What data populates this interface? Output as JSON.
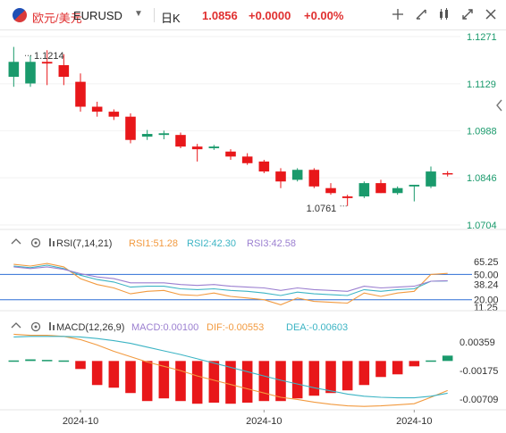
{
  "header": {
    "pair_name": "欧元/美元",
    "ticker": "EURUSD",
    "interval": "日K",
    "price": "1.0856",
    "change": "+0.0000",
    "change_pct": "+0.00%",
    "icons": [
      "crosshair-icon",
      "chart-settings-icon",
      "indicator-icon",
      "fullscreen-icon",
      "close-icon"
    ]
  },
  "colors": {
    "up": "#1a9a6c",
    "down": "#e8171a",
    "axis_text": "#1a9a6c"
  },
  "main": {
    "price_labels": [
      "1.1271",
      "1.1129",
      "1.0988",
      "1.0846",
      "1.0704"
    ],
    "high_annotation": "1.1214",
    "low_annotation": "1.0761"
  },
  "rsi": {
    "label": "RSI(7,14,21)",
    "rsi1": "RSI1:51.28",
    "rsi2": "RSI2:42.30",
    "rsi3": "RSI3:42.58",
    "axis_labels": [
      "65.25",
      "50.00",
      "38.24",
      "20.00",
      "11.25"
    ]
  },
  "macd": {
    "label": "MACD(12,26,9)",
    "macd_value": "MACD:0.00100",
    "dif": "DIF:-0.00553",
    "dea": "DEA:-0.00603",
    "axis_labels": [
      "0.00359",
      "-0.00175",
      "-0.00709"
    ]
  },
  "x_labels": [
    "2024-10",
    "2024-10",
    "2024-10"
  ],
  "chart_data": {
    "type": "candlestick",
    "ylim": [
      1.0704,
      1.1271
    ],
    "candles": [
      {
        "o": 1.115,
        "h": 1.124,
        "l": 1.112,
        "c": 1.1195
      },
      {
        "o": 1.113,
        "h": 1.1214,
        "l": 1.112,
        "c": 1.1195
      },
      {
        "o": 1.1195,
        "h": 1.123,
        "l": 1.1125,
        "c": 1.119
      },
      {
        "o": 1.1185,
        "h": 1.1218,
        "l": 1.1125,
        "c": 1.115
      },
      {
        "o": 1.1135,
        "h": 1.116,
        "l": 1.1045,
        "c": 1.106
      },
      {
        "o": 1.106,
        "h": 1.1075,
        "l": 1.103,
        "c": 1.1045
      },
      {
        "o": 1.1045,
        "h": 1.1052,
        "l": 1.102,
        "c": 1.103
      },
      {
        "o": 1.103,
        "h": 1.104,
        "l": 1.095,
        "c": 1.096
      },
      {
        "o": 1.097,
        "h": 1.099,
        "l": 1.096,
        "c": 1.0978
      },
      {
        "o": 1.0975,
        "h": 1.0988,
        "l": 1.0962,
        "c": 1.098
      },
      {
        "o": 1.0975,
        "h": 1.0982,
        "l": 1.0935,
        "c": 1.094
      },
      {
        "o": 1.094,
        "h": 1.0948,
        "l": 1.0895,
        "c": 1.0932
      },
      {
        "o": 1.0935,
        "h": 1.0945,
        "l": 1.093,
        "c": 1.094
      },
      {
        "o": 1.0925,
        "h": 1.0932,
        "l": 1.09,
        "c": 1.091
      },
      {
        "o": 1.091,
        "h": 1.092,
        "l": 1.0885,
        "c": 1.089
      },
      {
        "o": 1.0895,
        "h": 1.09,
        "l": 1.086,
        "c": 1.0865
      },
      {
        "o": 1.0865,
        "h": 1.0875,
        "l": 1.0815,
        "c": 1.0835
      },
      {
        "o": 1.084,
        "h": 1.0875,
        "l": 1.0835,
        "c": 1.087
      },
      {
        "o": 1.087,
        "h": 1.0875,
        "l": 1.0815,
        "c": 1.082
      },
      {
        "o": 1.0815,
        "h": 1.083,
        "l": 1.0795,
        "c": 1.08
      },
      {
        "o": 1.079,
        "h": 1.0795,
        "l": 1.0761,
        "c": 1.0785
      },
      {
        "o": 1.079,
        "h": 1.0835,
        "l": 1.0785,
        "c": 1.083
      },
      {
        "o": 1.083,
        "h": 1.084,
        "l": 1.08,
        "c": 1.08
      },
      {
        "o": 1.08,
        "h": 1.082,
        "l": 1.0795,
        "c": 1.0815
      },
      {
        "o": 1.082,
        "h": 1.0825,
        "l": 1.0775,
        "c": 1.0825
      },
      {
        "o": 1.082,
        "h": 1.088,
        "l": 1.0815,
        "c": 1.0865
      },
      {
        "o": 1.086,
        "h": 1.0866,
        "l": 1.085,
        "c": 1.0856
      }
    ],
    "rsi_ylim": [
      11.25,
      65.25
    ],
    "rsi1": [
      62,
      60,
      63,
      59,
      45,
      38,
      34,
      27,
      30,
      31,
      26,
      25,
      28,
      24,
      22,
      20,
      14,
      22,
      18,
      17,
      16,
      28,
      24,
      28,
      30,
      50,
      51.28
    ],
    "rsi2": [
      60,
      58,
      61,
      57,
      49,
      44,
      41,
      35,
      36,
      36,
      33,
      32,
      33,
      31,
      30,
      28,
      25,
      29,
      27,
      26,
      25,
      32,
      30,
      32,
      33,
      42,
      42.3
    ],
    "rsi3": [
      59,
      57,
      59,
      56,
      51,
      47,
      45,
      40,
      40,
      40,
      38,
      37,
      38,
      36,
      35,
      34,
      31,
      34,
      32,
      31,
      30,
      36,
      34,
      35,
      36,
      42,
      42.58
    ],
    "macd_ylim": [
      -0.0088,
      0.0054
    ],
    "macd_hist": [
      0.0001,
      0.0003,
      0.0002,
      0.0001,
      -0.0015,
      -0.0045,
      -0.005,
      -0.006,
      -0.0075,
      -0.007,
      -0.0075,
      -0.008,
      -0.0078,
      -0.008,
      -0.0078,
      -0.0075,
      -0.0075,
      -0.007,
      -0.0065,
      -0.006,
      -0.0055,
      -0.0045,
      -0.003,
      -0.0025,
      -0.001,
      0.0001,
      0.001
    ],
    "dif": [
      0.005,
      0.0048,
      0.0048,
      0.0046,
      0.004,
      0.003,
      0.0018,
      0.0008,
      -0.0002,
      -0.001,
      -0.0018,
      -0.0028,
      -0.0036,
      -0.0044,
      -0.0052,
      -0.006,
      -0.0068,
      -0.0072,
      -0.0077,
      -0.0081,
      -0.0084,
      -0.0085,
      -0.0084,
      -0.0082,
      -0.008,
      -0.0068,
      -0.00553
    ],
    "dea": [
      0.0045,
      0.0046,
      0.0046,
      0.0046,
      0.0045,
      0.0042,
      0.0038,
      0.0033,
      0.0026,
      0.0019,
      0.0012,
      0.0004,
      -0.0004,
      -0.0012,
      -0.002,
      -0.0028,
      -0.0036,
      -0.0043,
      -0.005,
      -0.0056,
      -0.0062,
      -0.0066,
      -0.0068,
      -0.0069,
      -0.0069,
      -0.0066,
      -0.00603
    ]
  }
}
